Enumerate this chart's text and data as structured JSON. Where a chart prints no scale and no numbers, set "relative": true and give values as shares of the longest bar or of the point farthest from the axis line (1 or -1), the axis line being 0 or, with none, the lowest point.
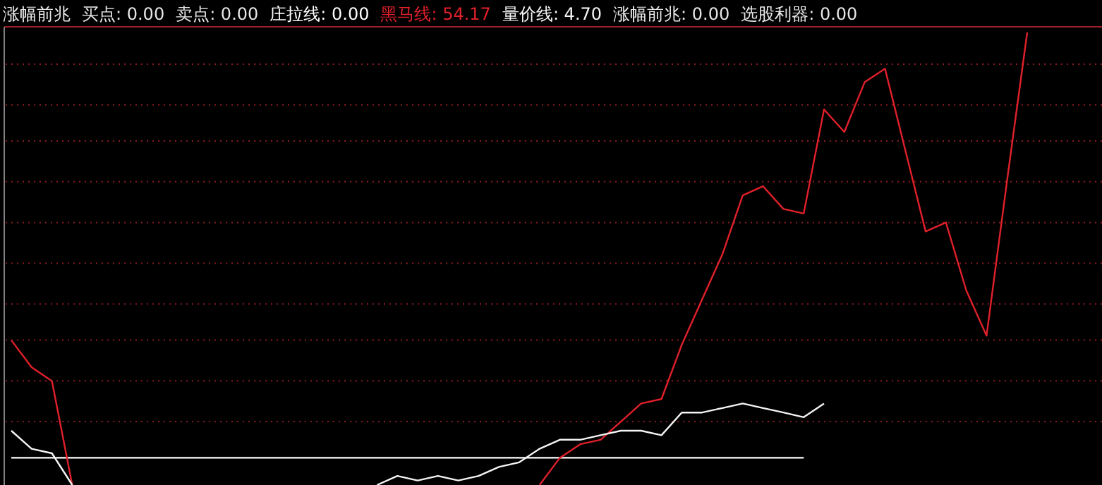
{
  "chart_data": {
    "type": "line",
    "title": "涨幅前兆",
    "relative": true,
    "legend": "top left",
    "ref_lines": [
      {
        "axis": "y",
        "value": 0.14,
        "color": "#8a1a20",
        "line_style": "dotted"
      },
      {
        "axis": "y",
        "value": 0.23,
        "color": "#8a1a20",
        "line_style": "dotted"
      },
      {
        "axis": "y",
        "value": 0.32,
        "color": "#8a1a20",
        "line_style": "dotted"
      },
      {
        "axis": "y",
        "value": 0.4,
        "color": "#8a1a20",
        "line_style": "dotted"
      },
      {
        "axis": "y",
        "value": 0.49,
        "color": "#8a1a20",
        "line_style": "dotted"
      },
      {
        "axis": "y",
        "value": 0.58,
        "color": "#8a1a20",
        "line_style": "dotted"
      },
      {
        "axis": "y",
        "value": 0.67,
        "color": "#8a1a20",
        "line_style": "dotted"
      },
      {
        "axis": "y",
        "value": 0.76,
        "color": "#8a1a20",
        "line_style": "dotted"
      },
      {
        "axis": "y",
        "value": 0.84,
        "color": "#8a1a20",
        "line_style": "dotted"
      },
      {
        "axis": "y",
        "value": 0.93,
        "color": "#8a1a20",
        "line_style": "dotted"
      }
    ],
    "annotations": [
      "买点: 0.00",
      "卖点: 0.00",
      "涨幅前兆: 0.00",
      "选股利器: 0.00"
    ],
    "categories": [
      null,
      null,
      null,
      null,
      null,
      null,
      null,
      null,
      null,
      null,
      null,
      null,
      null,
      null,
      null,
      null,
      null,
      null,
      null,
      null,
      null,
      null,
      null,
      null,
      null,
      null,
      null,
      null,
      null,
      null,
      null,
      null,
      null,
      null,
      null,
      null,
      null,
      null,
      null,
      null,
      null,
      null,
      null,
      null,
      null,
      null,
      null,
      null,
      null,
      null,
      null
    ],
    "series": [
      {
        "name": "庄拉线: 0.00",
        "color": "#ffffff",
        "values": [
          0.06,
          0.06,
          0.06,
          0.06,
          0.06,
          0.06,
          0.06,
          0.06,
          0.06,
          0.06,
          0.06,
          0.06,
          0.06,
          0.06,
          0.06,
          0.06,
          0.06,
          0.06,
          0.06,
          0.06,
          0.06,
          0.06,
          0.06,
          0.06,
          0.06,
          0.06,
          0.06,
          0.06,
          0.06,
          0.06,
          0.06,
          0.06,
          0.06,
          0.06,
          0.06,
          0.06,
          0.06,
          0.06,
          0.06,
          0.06,
          null,
          null,
          null,
          null,
          null,
          null,
          null,
          null,
          null,
          null,
          null
        ]
      },
      {
        "name": "黑马线: 54.17",
        "color": "#e0202a",
        "values": [
          0.32,
          0.26,
          0.23,
          0,
          null,
          null,
          null,
          null,
          null,
          null,
          null,
          null,
          null,
          null,
          null,
          null,
          null,
          null,
          null,
          null,
          null,
          null,
          null,
          null,
          null,
          null,
          0,
          0.06,
          0.09,
          0.1,
          0.14,
          0.18,
          0.19,
          0.31,
          0.41,
          0.51,
          0.64,
          0.66,
          0.61,
          0.6,
          0.83,
          0.78,
          0.89,
          0.92,
          0.74,
          0.56,
          0.58,
          0.43,
          0.33,
          0.67,
          1
        ]
      },
      {
        "name": "量价线: 4.70",
        "color": "#f4f4f4",
        "values": [
          0.12,
          0.08,
          0.07,
          0,
          null,
          null,
          null,
          null,
          null,
          null,
          null,
          null,
          null,
          null,
          null,
          null,
          null,
          null,
          0.0,
          0.02,
          0.01,
          0.02,
          0.01,
          0.02,
          0.04,
          0.05,
          0.08,
          0.1,
          0.1,
          0.11,
          0.12,
          0.12,
          0.11,
          0.16,
          0.16,
          0.17,
          0.18,
          0.17,
          0.16,
          0.15,
          0.18,
          null,
          null,
          null,
          null,
          null,
          null,
          null,
          null,
          null,
          null
        ]
      }
    ]
  }
}
